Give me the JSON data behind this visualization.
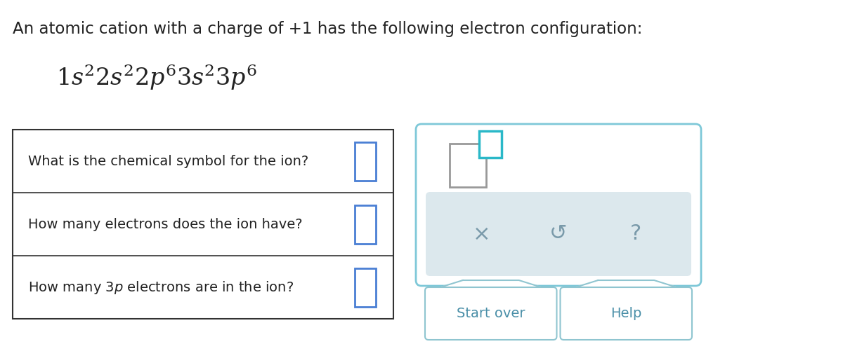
{
  "background_color": "#ffffff",
  "title_text": "An atomic cation with a charge of +1 has the following electron configuration:",
  "title_fontsize": 16.5,
  "text_color": "#222222",
  "config_fontsize": 24,
  "questions": [
    "What is the chemical symbol for the ion?",
    "How many electrons does the ion have?",
    "How many $\\mathit{3p}$ electrons are in the ion?"
  ],
  "input_box_color": "#4a7fd4",
  "panel_border_color": "#7ec8d8",
  "toolbar_bg": "#dce8ed",
  "button_border_color": "#8fc5d0",
  "button_text_color": "#4a8fa8",
  "start_over_text": "Start over",
  "help_text": "Help",
  "icon_color": "#7a9aaa",
  "big_sq_color": "#999999",
  "small_sq_color": "#2ab8c8"
}
